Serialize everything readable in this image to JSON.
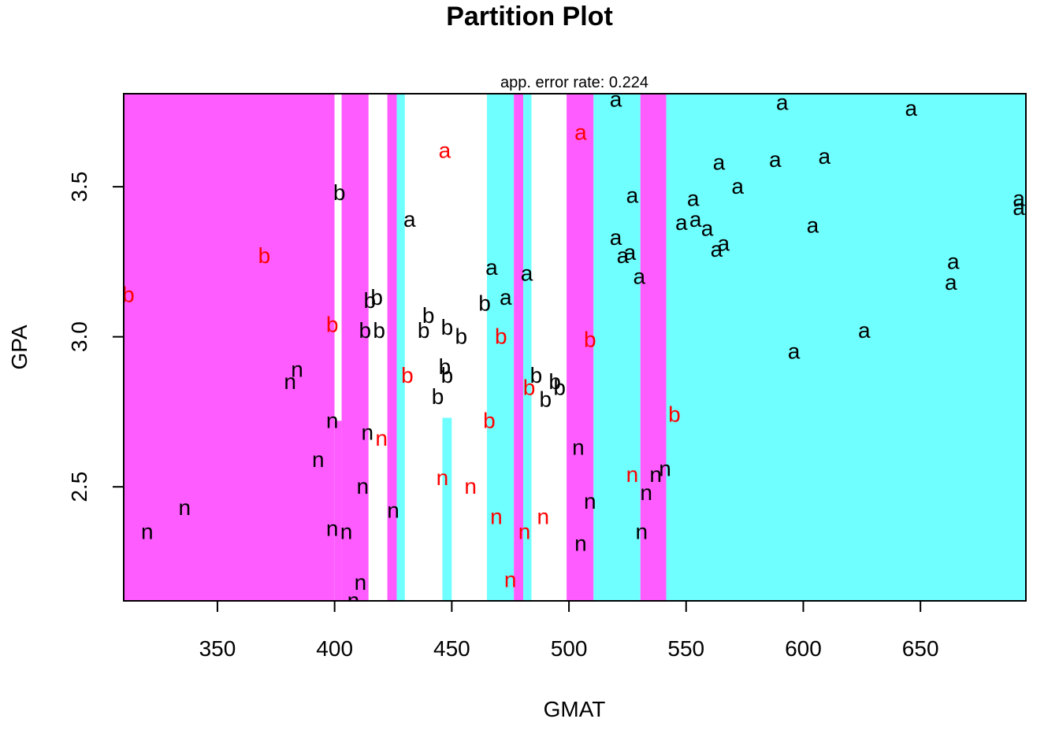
{
  "chart_data": {
    "type": "scatter",
    "title": "Partition Plot",
    "subtitle": "app. error rate: 0.224",
    "xlabel": "GMAT",
    "ylabel": "GPA",
    "xlim": [
      310,
      695
    ],
    "ylim": [
      2.12,
      3.81
    ],
    "x_ticks": [
      350,
      400,
      450,
      500,
      550,
      600,
      650
    ],
    "x_tick_labels": [
      "350",
      "400",
      "450",
      "500",
      "550",
      "600",
      "650"
    ],
    "y_ticks": [
      2.5,
      3.0,
      3.5
    ],
    "y_tick_labels": [
      "2.5",
      "3.0",
      "3.5"
    ],
    "grid": false,
    "legend": "none",
    "region_colors": {
      "n": "#ff5cff",
      "b": "#ffffff",
      "a": "#70ffff"
    },
    "misclassified_color": "#ff0000",
    "point_color": "#000000",
    "regions": [
      {
        "x0": 310,
        "x1": 400,
        "class": "n"
      },
      {
        "x0": 400,
        "x1": 403,
        "class": "b",
        "y_above": 2.72,
        "lower_class": "n"
      },
      {
        "x0": 403,
        "x1": 414.5,
        "class": "n"
      },
      {
        "x0": 414.5,
        "x1": 422.5,
        "class": "b"
      },
      {
        "x0": 422.5,
        "x1": 426.5,
        "class": "n"
      },
      {
        "x0": 426.5,
        "x1": 430,
        "class": "a"
      },
      {
        "x0": 430,
        "x1": 446,
        "class": "b"
      },
      {
        "x0": 446,
        "x1": 450,
        "class": "b",
        "y_below": 2.73,
        "lower_class": "a"
      },
      {
        "x0": 450,
        "x1": 465,
        "class": "b"
      },
      {
        "x0": 465,
        "x1": 476.5,
        "class": "a"
      },
      {
        "x0": 476.5,
        "x1": 480.5,
        "class": "n"
      },
      {
        "x0": 480.5,
        "x1": 484,
        "class": "a"
      },
      {
        "x0": 484,
        "x1": 499,
        "class": "b"
      },
      {
        "x0": 499,
        "x1": 510.5,
        "class": "n"
      },
      {
        "x0": 510.5,
        "x1": 530.5,
        "class": "a"
      },
      {
        "x0": 530.5,
        "x1": 541.5,
        "class": "n"
      },
      {
        "x0": 541.5,
        "x1": 695,
        "class": "a"
      }
    ],
    "points": [
      {
        "x": 520,
        "y": 3.79,
        "label": "a",
        "miss": false
      },
      {
        "x": 591,
        "y": 3.78,
        "label": "a",
        "miss": false
      },
      {
        "x": 646,
        "y": 3.76,
        "label": "a",
        "miss": false
      },
      {
        "x": 505,
        "y": 3.68,
        "label": "a",
        "miss": true
      },
      {
        "x": 447,
        "y": 3.62,
        "label": "a",
        "miss": true
      },
      {
        "x": 564,
        "y": 3.58,
        "label": "a",
        "miss": false
      },
      {
        "x": 588,
        "y": 3.59,
        "label": "a",
        "miss": false
      },
      {
        "x": 609,
        "y": 3.6,
        "label": "a",
        "miss": false
      },
      {
        "x": 572,
        "y": 3.5,
        "label": "a",
        "miss": false
      },
      {
        "x": 527,
        "y": 3.47,
        "label": "a",
        "miss": false
      },
      {
        "x": 553,
        "y": 3.46,
        "label": "a",
        "miss": false
      },
      {
        "x": 692,
        "y": 3.46,
        "label": "a",
        "miss": false
      },
      {
        "x": 692,
        "y": 3.43,
        "label": "a",
        "miss": false
      },
      {
        "x": 432,
        "y": 3.39,
        "label": "a",
        "miss": false
      },
      {
        "x": 548,
        "y": 3.38,
        "label": "a",
        "miss": false
      },
      {
        "x": 554,
        "y": 3.39,
        "label": "a",
        "miss": false
      },
      {
        "x": 604,
        "y": 3.37,
        "label": "a",
        "miss": false
      },
      {
        "x": 559,
        "y": 3.36,
        "label": "a",
        "miss": false
      },
      {
        "x": 520,
        "y": 3.33,
        "label": "a",
        "miss": false
      },
      {
        "x": 566,
        "y": 3.31,
        "label": "a",
        "miss": false
      },
      {
        "x": 563,
        "y": 3.29,
        "label": "a",
        "miss": false
      },
      {
        "x": 526,
        "y": 3.28,
        "label": "a",
        "miss": false
      },
      {
        "x": 523,
        "y": 3.27,
        "label": "a",
        "miss": false
      },
      {
        "x": 664,
        "y": 3.25,
        "label": "a",
        "miss": false
      },
      {
        "x": 467,
        "y": 3.23,
        "label": "a",
        "miss": false
      },
      {
        "x": 482,
        "y": 3.21,
        "label": "a",
        "miss": false
      },
      {
        "x": 530,
        "y": 3.2,
        "label": "a",
        "miss": false
      },
      {
        "x": 663,
        "y": 3.18,
        "label": "a",
        "miss": false
      },
      {
        "x": 473,
        "y": 3.13,
        "label": "a",
        "miss": false
      },
      {
        "x": 626,
        "y": 3.02,
        "label": "a",
        "miss": false
      },
      {
        "x": 596,
        "y": 2.95,
        "label": "a",
        "miss": false
      },
      {
        "x": 402,
        "y": 3.48,
        "label": "b",
        "miss": false
      },
      {
        "x": 370,
        "y": 3.27,
        "label": "b",
        "miss": true
      },
      {
        "x": 312,
        "y": 3.14,
        "label": "b",
        "miss": true
      },
      {
        "x": 418,
        "y": 3.13,
        "label": "b",
        "miss": false
      },
      {
        "x": 415,
        "y": 3.12,
        "label": "b",
        "miss": false
      },
      {
        "x": 464,
        "y": 3.11,
        "label": "b",
        "miss": false
      },
      {
        "x": 440,
        "y": 3.07,
        "label": "b",
        "miss": false
      },
      {
        "x": 399,
        "y": 3.04,
        "label": "b",
        "miss": true
      },
      {
        "x": 413,
        "y": 3.02,
        "label": "b",
        "miss": false
      },
      {
        "x": 419,
        "y": 3.02,
        "label": "b",
        "miss": false
      },
      {
        "x": 448,
        "y": 3.03,
        "label": "b",
        "miss": false
      },
      {
        "x": 438,
        "y": 3.02,
        "label": "b",
        "miss": false
      },
      {
        "x": 454,
        "y": 3.0,
        "label": "b",
        "miss": false
      },
      {
        "x": 471,
        "y": 3.0,
        "label": "b",
        "miss": true
      },
      {
        "x": 509,
        "y": 2.99,
        "label": "b",
        "miss": true
      },
      {
        "x": 447,
        "y": 2.9,
        "label": "b",
        "miss": false
      },
      {
        "x": 448,
        "y": 2.87,
        "label": "b",
        "miss": false
      },
      {
        "x": 431,
        "y": 2.87,
        "label": "b",
        "miss": true
      },
      {
        "x": 486,
        "y": 2.87,
        "label": "b",
        "miss": false
      },
      {
        "x": 494,
        "y": 2.85,
        "label": "b",
        "miss": false
      },
      {
        "x": 496,
        "y": 2.83,
        "label": "b",
        "miss": false
      },
      {
        "x": 483,
        "y": 2.83,
        "label": "b",
        "miss": true
      },
      {
        "x": 444,
        "y": 2.8,
        "label": "b",
        "miss": false
      },
      {
        "x": 490,
        "y": 2.79,
        "label": "b",
        "miss": false
      },
      {
        "x": 545,
        "y": 2.74,
        "label": "b",
        "miss": true
      },
      {
        "x": 466,
        "y": 2.72,
        "label": "b",
        "miss": true
      },
      {
        "x": 384,
        "y": 2.89,
        "label": "n",
        "miss": false
      },
      {
        "x": 381,
        "y": 2.85,
        "label": "n",
        "miss": false
      },
      {
        "x": 399,
        "y": 2.72,
        "label": "n",
        "miss": false
      },
      {
        "x": 414,
        "y": 2.68,
        "label": "n",
        "miss": false
      },
      {
        "x": 420,
        "y": 2.66,
        "label": "n",
        "miss": true
      },
      {
        "x": 504,
        "y": 2.63,
        "label": "n",
        "miss": false
      },
      {
        "x": 393,
        "y": 2.59,
        "label": "n",
        "miss": false
      },
      {
        "x": 541,
        "y": 2.56,
        "label": "n",
        "miss": false
      },
      {
        "x": 537,
        "y": 2.54,
        "label": "n",
        "miss": false
      },
      {
        "x": 527,
        "y": 2.54,
        "label": "n",
        "miss": true
      },
      {
        "x": 446,
        "y": 2.53,
        "label": "n",
        "miss": true
      },
      {
        "x": 458,
        "y": 2.5,
        "label": "n",
        "miss": true
      },
      {
        "x": 412,
        "y": 2.5,
        "label": "n",
        "miss": false
      },
      {
        "x": 533,
        "y": 2.48,
        "label": "n",
        "miss": false
      },
      {
        "x": 509,
        "y": 2.45,
        "label": "n",
        "miss": false
      },
      {
        "x": 336,
        "y": 2.43,
        "label": "n",
        "miss": false
      },
      {
        "x": 425,
        "y": 2.42,
        "label": "n",
        "miss": false
      },
      {
        "x": 469,
        "y": 2.4,
        "label": "n",
        "miss": true
      },
      {
        "x": 489,
        "y": 2.4,
        "label": "n",
        "miss": true
      },
      {
        "x": 399,
        "y": 2.36,
        "label": "n",
        "miss": false
      },
      {
        "x": 405,
        "y": 2.35,
        "label": "n",
        "miss": false
      },
      {
        "x": 320,
        "y": 2.35,
        "label": "n",
        "miss": false
      },
      {
        "x": 481,
        "y": 2.35,
        "label": "n",
        "miss": true
      },
      {
        "x": 531,
        "y": 2.35,
        "label": "n",
        "miss": false
      },
      {
        "x": 505,
        "y": 2.31,
        "label": "n",
        "miss": false
      },
      {
        "x": 475,
        "y": 2.19,
        "label": "n",
        "miss": true
      },
      {
        "x": 411,
        "y": 2.18,
        "label": "n",
        "miss": false
      },
      {
        "x": 408,
        "y": 2.12,
        "label": "n",
        "miss": false
      }
    ]
  }
}
